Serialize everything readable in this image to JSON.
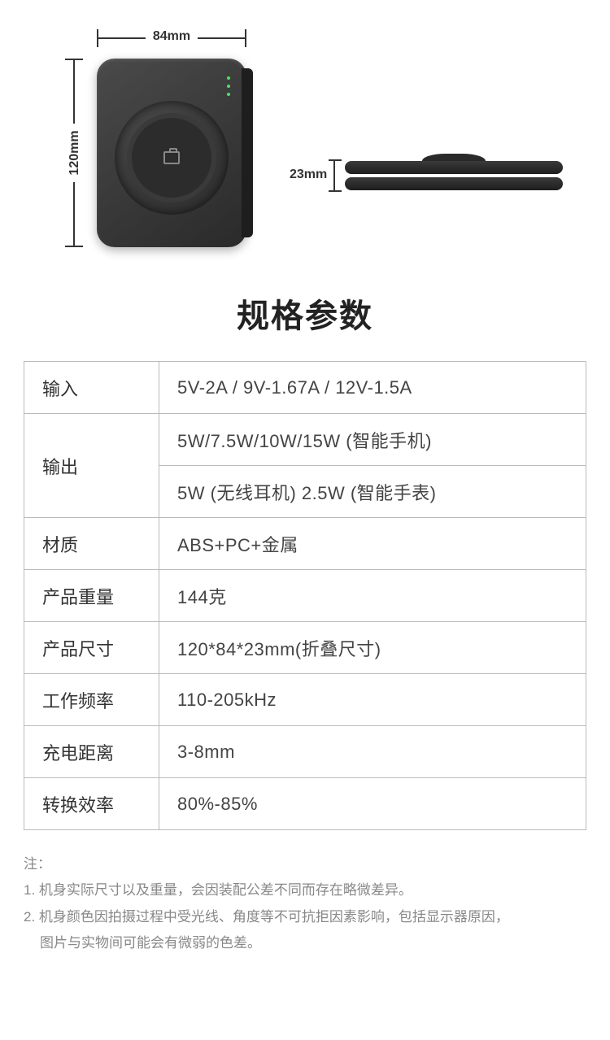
{
  "dimensions": {
    "width_label": "84mm",
    "height_label": "120mm",
    "thickness_label": "23mm"
  },
  "title": "规格参数",
  "specs": {
    "rows": [
      {
        "label": "输入",
        "value": "5V-2A / 9V-1.67A / 12V-1.5A"
      },
      {
        "label": "输出",
        "value": "5W/7.5W/10W/15W (智能手机)"
      },
      {
        "label": "",
        "value": "5W (无线耳机)   2.5W (智能手表)"
      },
      {
        "label": "材质",
        "value": "ABS+PC+金属"
      },
      {
        "label": "产品重量",
        "value": "144克"
      },
      {
        "label": "产品尺寸",
        "value": "120*84*23mm(折叠尺寸)"
      },
      {
        "label": "工作频率",
        "value": "110-205kHz"
      },
      {
        "label": "充电距离",
        "value": "3-8mm"
      },
      {
        "label": "转换效率",
        "value": "80%-85%"
      }
    ]
  },
  "notes": {
    "heading": "注：",
    "line1": "1. 机身实际尺寸以及重量，会因装配公差不同而存在略微差异。",
    "line2": "2. 机身颜色因拍摄过程中受光线、角度等不可抗拒因素影响，包括显示器原因，",
    "line2b": "图片与实物间可能会有微弱的色差。"
  },
  "style": {
    "background": "#ffffff",
    "text_color": "#333333",
    "border_color": "#bbbbbb",
    "note_color": "#888888",
    "title_fontsize": 40,
    "cell_fontsize": 22,
    "note_fontsize": 17,
    "led_color": "#3eea5a",
    "device_dark": "#2a2a2a",
    "device_light": "#4a4a4a"
  }
}
